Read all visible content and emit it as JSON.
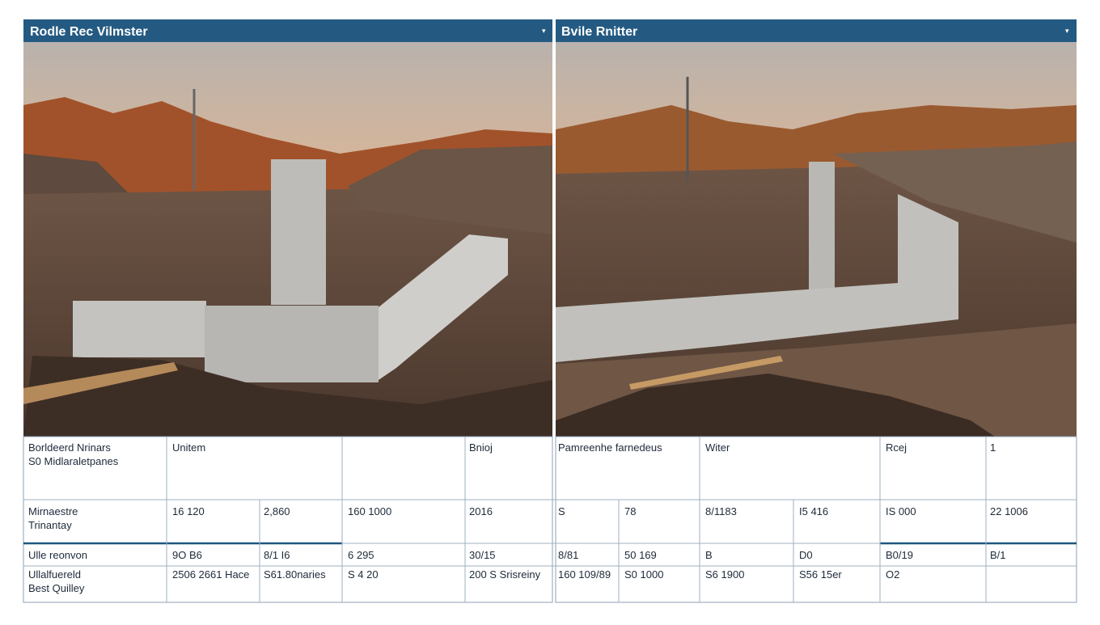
{
  "panels": [
    {
      "title": "Rodle Rec Vilmster"
    },
    {
      "title": "Bvile Rnitter"
    }
  ],
  "table": {
    "rows": [
      [
        [
          "Borldeerd Nrinars",
          "S0 Midlaraletpanes"
        ],
        "Unitem",
        "Bnioj",
        "Pamreenhe farnedeus",
        "Witer",
        "Rcej",
        "1"
      ],
      [
        [
          "Mirnaestre",
          "Trinantay"
        ],
        "16 120",
        "2,860",
        "160 1000",
        "2016",
        "S",
        "78",
        "8/1183",
        "I5 416",
        "IS 000",
        "22 1006"
      ],
      [
        "Ulle reonvon",
        "9O B6",
        "8/1 I6",
        "6 295",
        "30/15",
        "8/81",
        "50 169",
        "B",
        "D0",
        "B0/19",
        "B/1"
      ],
      [
        [
          "Ullalfuereld",
          "Best Quilley"
        ],
        "2506 2661 Hace",
        "S61.80naries",
        "S 4 20",
        "200 S Srisreiny",
        "160 109/89",
        "S0 1000",
        "S6 1900",
        "S56 15er",
        "O2"
      ]
    ]
  }
}
